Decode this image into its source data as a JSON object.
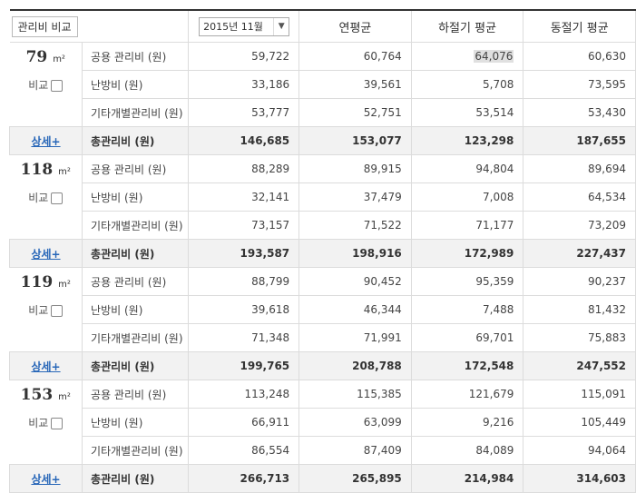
{
  "header": {
    "compare_button": "관리비 비교",
    "period_select": "2015년 11월",
    "col_annual": "연평균",
    "col_summer": "하절기 평균",
    "col_winter": "동절기 평균"
  },
  "labels": {
    "compare": "비교",
    "detail": "상세+",
    "area_unit": "m²"
  },
  "groups": [
    {
      "area": "79",
      "rows": [
        {
          "item": "공용 관리비 (원)",
          "month": "59,722",
          "annual": "60,764",
          "summer": "64,076",
          "winter": "60,630"
        },
        {
          "item": "난방비 (원)",
          "month": "33,186",
          "annual": "39,561",
          "summer": "5,708",
          "winter": "73,595"
        },
        {
          "item": "기타개별관리비 (원)",
          "month": "53,777",
          "annual": "52,751",
          "summer": "53,514",
          "winter": "53,430"
        }
      ],
      "total": {
        "item": "총관리비 (원)",
        "month": "146,685",
        "annual": "153,077",
        "summer": "123,298",
        "winter": "187,655"
      }
    },
    {
      "area": "118",
      "rows": [
        {
          "item": "공용 관리비 (원)",
          "month": "88,289",
          "annual": "89,915",
          "summer": "94,804",
          "winter": "89,694"
        },
        {
          "item": "난방비 (원)",
          "month": "32,141",
          "annual": "37,479",
          "summer": "7,008",
          "winter": "64,534"
        },
        {
          "item": "기타개별관리비 (원)",
          "month": "73,157",
          "annual": "71,522",
          "summer": "71,177",
          "winter": "73,209"
        }
      ],
      "total": {
        "item": "총관리비 (원)",
        "month": "193,587",
        "annual": "198,916",
        "summer": "172,989",
        "winter": "227,437"
      }
    },
    {
      "area": "119",
      "rows": [
        {
          "item": "공용 관리비 (원)",
          "month": "88,799",
          "annual": "90,452",
          "summer": "95,359",
          "winter": "90,237"
        },
        {
          "item": "난방비 (원)",
          "month": "39,618",
          "annual": "46,344",
          "summer": "7,488",
          "winter": "81,432"
        },
        {
          "item": "기타개별관리비 (원)",
          "month": "71,348",
          "annual": "71,991",
          "summer": "69,701",
          "winter": "75,883"
        }
      ],
      "total": {
        "item": "총관리비 (원)",
        "month": "199,765",
        "annual": "208,788",
        "summer": "172,548",
        "winter": "247,552"
      }
    },
    {
      "area": "153",
      "rows": [
        {
          "item": "공용 관리비 (원)",
          "month": "113,248",
          "annual": "115,385",
          "summer": "121,679",
          "winter": "115,091"
        },
        {
          "item": "난방비 (원)",
          "month": "66,911",
          "annual": "63,099",
          "summer": "9,216",
          "winter": "105,449"
        },
        {
          "item": "기타개별관리비 (원)",
          "month": "86,554",
          "annual": "87,409",
          "summer": "84,089",
          "winter": "94,064"
        }
      ],
      "total": {
        "item": "총관리비 (원)",
        "month": "266,713",
        "annual": "265,895",
        "summer": "214,984",
        "winter": "314,603"
      }
    }
  ]
}
